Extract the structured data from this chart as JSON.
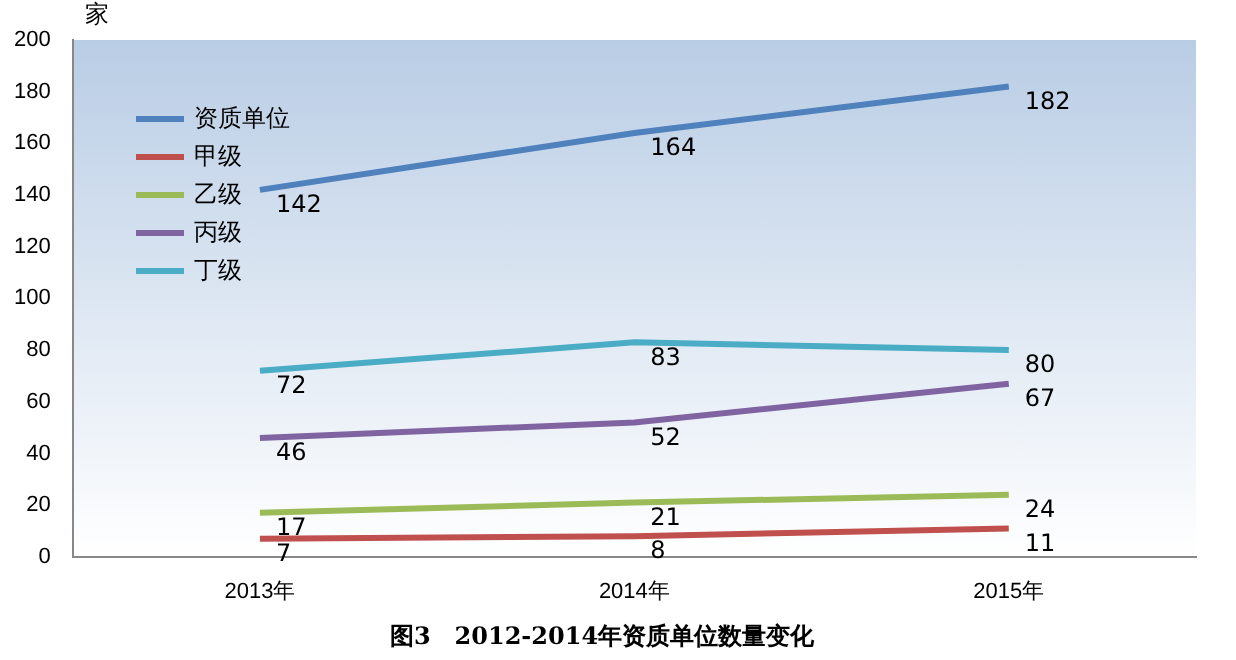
{
  "chart_data": {
    "type": "line",
    "title": "图3　2012-2014年资质单位数量变化",
    "ylabel": "家",
    "categories": [
      "2013年",
      "2014年",
      "2015年"
    ],
    "series": [
      {
        "name": "资质单位",
        "color": "#4f81bd",
        "values": [
          142,
          164,
          182
        ]
      },
      {
        "name": "甲级",
        "color": "#c0504d",
        "values": [
          7,
          8,
          11
        ]
      },
      {
        "name": "乙级",
        "color": "#9bbb59",
        "values": [
          17,
          21,
          24
        ]
      },
      {
        "name": "丙级",
        "color": "#8064a2",
        "values": [
          46,
          52,
          67
        ]
      },
      {
        "name": "丁级",
        "color": "#4bacc6",
        "values": [
          72,
          83,
          80
        ]
      }
    ],
    "ylim": [
      0,
      200
    ],
    "yticks": [
      0,
      20,
      40,
      60,
      80,
      100,
      120,
      140,
      160,
      180,
      200
    ],
    "grid": false,
    "legend": "top left",
    "marker": "none",
    "line_style": "solid",
    "data_labels": true
  }
}
